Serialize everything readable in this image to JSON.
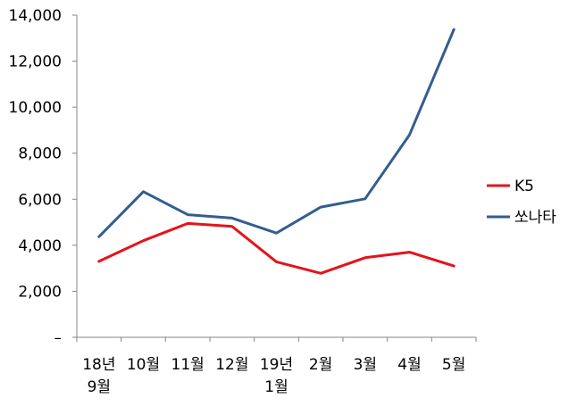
{
  "chart_data": {
    "type": "line",
    "categories": [
      [
        "18년",
        "9월"
      ],
      [
        "10월"
      ],
      [
        "11월"
      ],
      [
        "12월"
      ],
      [
        "19년",
        "1월"
      ],
      [
        "2월"
      ],
      [
        "3월"
      ],
      [
        "4월"
      ],
      [
        "5월"
      ]
    ],
    "series": [
      {
        "name": "K5",
        "color": "#e3141b",
        "values": [
          3300,
          4200,
          4950,
          4820,
          3280,
          2780,
          3460,
          3700,
          3100
        ]
      },
      {
        "name": "쏘나타",
        "color": "#335e8f",
        "values": [
          4370,
          6330,
          5330,
          5180,
          4530,
          5660,
          6020,
          8800,
          13380
        ]
      }
    ],
    "y_ticks": [
      {
        "value": 0,
        "label": "–"
      },
      {
        "value": 2000,
        "label": "2,000"
      },
      {
        "value": 4000,
        "label": "4,000"
      },
      {
        "value": 6000,
        "label": "6,000"
      },
      {
        "value": 8000,
        "label": "8,000"
      },
      {
        "value": 10000,
        "label": "10,000"
      },
      {
        "value": 12000,
        "label": "12,000"
      },
      {
        "value": 14000,
        "label": "14,000"
      }
    ],
    "ylim": [
      0,
      14000
    ],
    "grid": false,
    "legend_position": "right",
    "title": "",
    "xlabel": "",
    "ylabel": ""
  }
}
